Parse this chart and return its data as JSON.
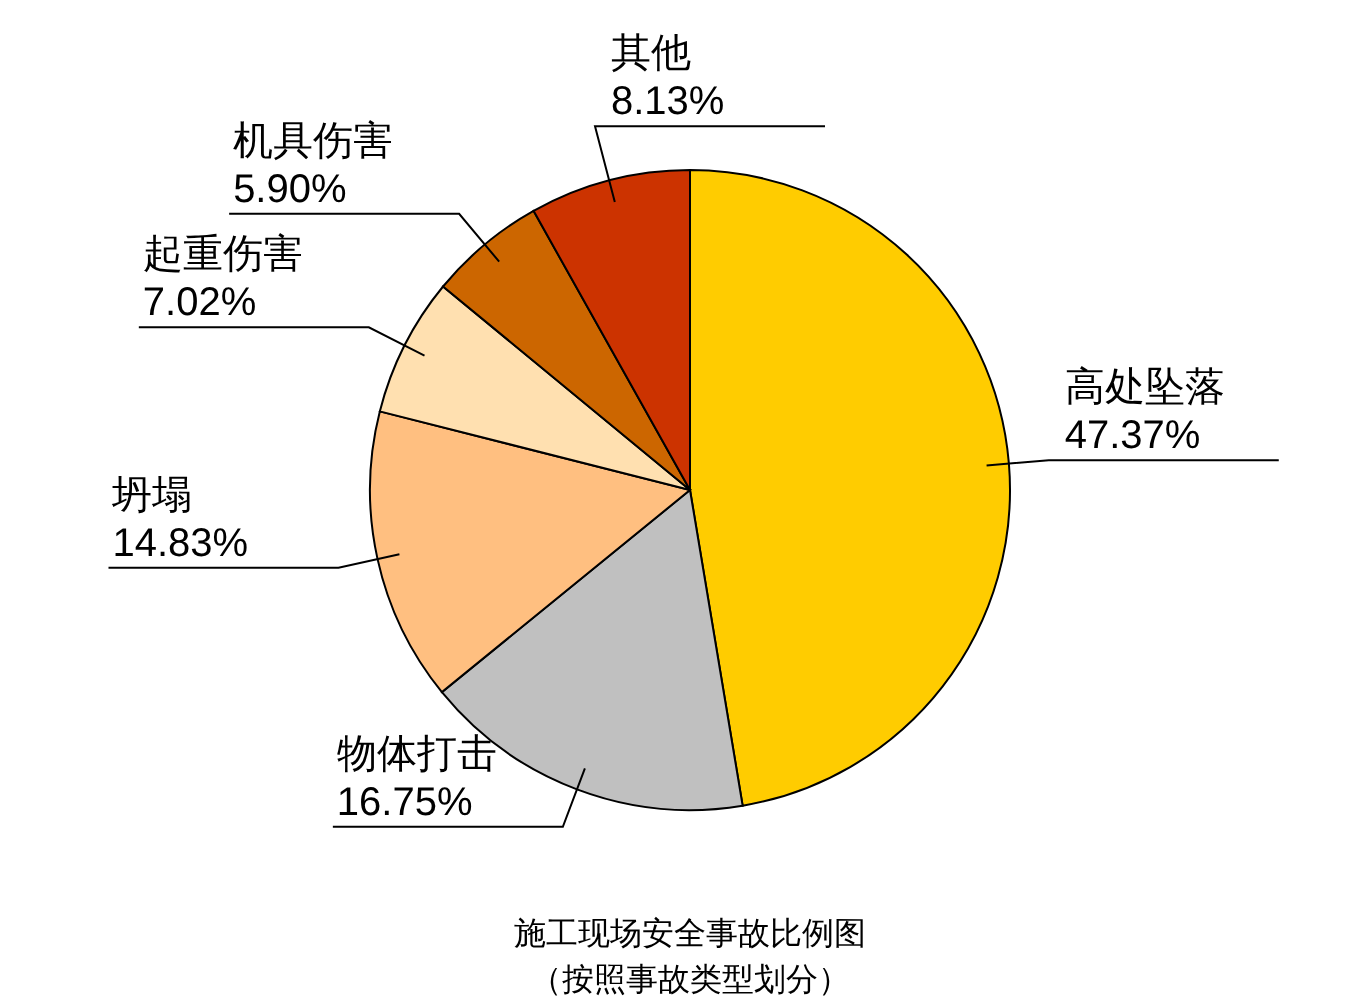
{
  "chart_data": {
    "type": "pie",
    "title": "施工现场安全事故比例图",
    "subtitle": "（按照事故类型划分）",
    "categories": [
      "高处坠落",
      "物体打击",
      "坍塌",
      "起重伤害",
      "机具伤害",
      "其他"
    ],
    "values": [
      47.37,
      16.75,
      14.83,
      7.02,
      5.9,
      8.13
    ],
    "value_labels": [
      "47.37%",
      "16.75%",
      "14.83%",
      "7.02%",
      "5.90%",
      "8.13%"
    ],
    "colors": [
      "#ffcc00",
      "#c0c0c0",
      "#ffbf80",
      "#ffe0b0",
      "#cc6600",
      "#cc3300"
    ]
  }
}
